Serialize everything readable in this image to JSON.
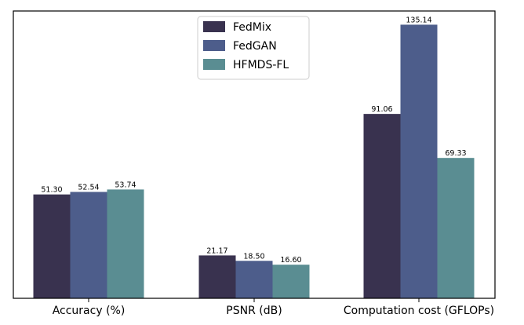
{
  "chart_data": {
    "type": "bar",
    "title": "",
    "xlabel": "",
    "ylabel": "",
    "categories": [
      "Accuracy (%)",
      "PSNR (dB)",
      "Computation cost (GFLOPs)"
    ],
    "series": [
      {
        "name": "FedMix",
        "color": "#39324f",
        "values": [
          51.3,
          21.17,
          91.06
        ],
        "labels": [
          "51.30",
          "21.17",
          "91.06"
        ]
      },
      {
        "name": "FedGAN",
        "color": "#4d5d8b",
        "values": [
          52.54,
          18.5,
          135.14
        ],
        "labels": [
          "52.54",
          "18.50",
          "135.14"
        ]
      },
      {
        "name": "HFMDS-FL",
        "color": "#5a8d92",
        "values": [
          53.74,
          16.6,
          69.33
        ],
        "labels": [
          "53.74",
          "16.60",
          "69.33"
        ]
      }
    ],
    "ylim": [
      0,
      141.9
    ],
    "yticks_visible": false,
    "grid": false,
    "legend": "top-center"
  }
}
